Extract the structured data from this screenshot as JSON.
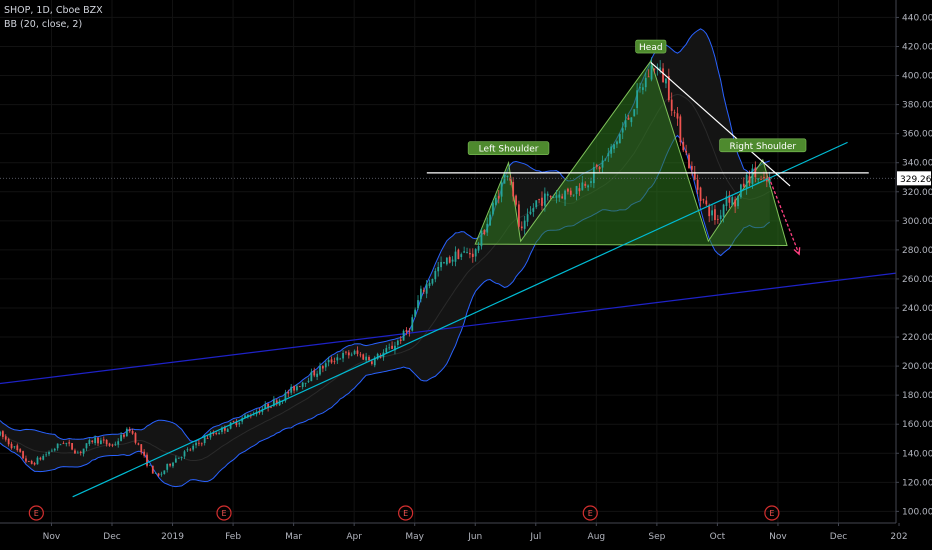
{
  "legend": {
    "symbol_line": "SHOP, 1D, Cboe BZX",
    "indicator_line": "BB (20, close, 2)"
  },
  "colors": {
    "background": "#000000",
    "up_candle": "#26a69a",
    "down_candle": "#ef5350",
    "bb_band": "#2962ff",
    "bb_fill": "#141414",
    "trend_cyan": "#00bcd4",
    "trend_blue": "#1e22c8",
    "pattern_fill": "#2f7a1f",
    "pattern_stroke": "#7fc25a",
    "price_badge": "#ffffff",
    "projection": "#ff4081"
  },
  "chart_data": {
    "type": "candlestick",
    "ylim": [
      92,
      452
    ],
    "x_range_months": [
      -0.85,
      13.95
    ],
    "y_ticks": [
      "100.00",
      "120.00",
      "140.00",
      "160.00",
      "180.00",
      "200.00",
      "220.00",
      "240.00",
      "260.00",
      "280.00",
      "300.00",
      "320.00",
      "340.00",
      "360.00",
      "380.00",
      "400.00",
      "420.00",
      "440.00"
    ],
    "x_ticks": [
      {
        "label": "Nov",
        "m": 0.0
      },
      {
        "label": "Dec",
        "m": 1.0
      },
      {
        "label": "2019",
        "m": 2.0
      },
      {
        "label": "Feb",
        "m": 3.0
      },
      {
        "label": "Mar",
        "m": 4.0
      },
      {
        "label": "Apr",
        "m": 5.0
      },
      {
        "label": "May",
        "m": 6.0
      },
      {
        "label": "Jun",
        "m": 7.0
      },
      {
        "label": "Jul",
        "m": 8.0
      },
      {
        "label": "Aug",
        "m": 9.0
      },
      {
        "label": "Sep",
        "m": 10.0
      },
      {
        "label": "Oct",
        "m": 11.0
      },
      {
        "label": "Nov",
        "m": 12.0
      },
      {
        "label": "Dec",
        "m": 13.0
      },
      {
        "label": "202",
        "m": 14.0
      }
    ],
    "last_price_label": "329.26",
    "last_price": 329.26,
    "earnings_markers": [
      {
        "label": "E",
        "m": -0.25
      },
      {
        "label": "E",
        "m": 2.85
      },
      {
        "label": "E",
        "m": 5.85
      },
      {
        "label": "E",
        "m": 8.9
      },
      {
        "label": "E",
        "m": 11.9
      }
    ],
    "price_path": [
      {
        "m": -0.85,
        "p": 153
      },
      {
        "m": -0.6,
        "p": 143
      },
      {
        "m": -0.35,
        "p": 132
      },
      {
        "m": -0.1,
        "p": 139
      },
      {
        "m": 0.2,
        "p": 148
      },
      {
        "m": 0.45,
        "p": 140
      },
      {
        "m": 0.7,
        "p": 150
      },
      {
        "m": 1.0,
        "p": 145
      },
      {
        "m": 1.3,
        "p": 157
      },
      {
        "m": 1.55,
        "p": 135
      },
      {
        "m": 1.75,
        "p": 123
      },
      {
        "m": 2.0,
        "p": 135
      },
      {
        "m": 2.3,
        "p": 143
      },
      {
        "m": 2.6,
        "p": 152
      },
      {
        "m": 2.9,
        "p": 158
      },
      {
        "m": 3.2,
        "p": 165
      },
      {
        "m": 3.5,
        "p": 171
      },
      {
        "m": 3.8,
        "p": 178
      },
      {
        "m": 4.1,
        "p": 188
      },
      {
        "m": 4.4,
        "p": 197
      },
      {
        "m": 4.7,
        "p": 206
      },
      {
        "m": 5.0,
        "p": 209
      },
      {
        "m": 5.3,
        "p": 204
      },
      {
        "m": 5.6,
        "p": 212
      },
      {
        "m": 5.9,
        "p": 225
      },
      {
        "m": 6.1,
        "p": 250
      },
      {
        "m": 6.4,
        "p": 268
      },
      {
        "m": 6.7,
        "p": 277
      },
      {
        "m": 7.0,
        "p": 278
      },
      {
        "m": 7.25,
        "p": 305
      },
      {
        "m": 7.55,
        "p": 337
      },
      {
        "m": 7.75,
        "p": 290
      },
      {
        "m": 8.0,
        "p": 313
      },
      {
        "m": 8.3,
        "p": 318
      },
      {
        "m": 8.6,
        "p": 320
      },
      {
        "m": 8.9,
        "p": 330
      },
      {
        "m": 9.2,
        "p": 345
      },
      {
        "m": 9.5,
        "p": 368
      },
      {
        "m": 9.75,
        "p": 392
      },
      {
        "m": 9.95,
        "p": 408
      },
      {
        "m": 10.15,
        "p": 396
      },
      {
        "m": 10.35,
        "p": 364
      },
      {
        "m": 10.6,
        "p": 330
      },
      {
        "m": 10.8,
        "p": 310
      },
      {
        "m": 11.0,
        "p": 300
      },
      {
        "m": 11.15,
        "p": 318
      },
      {
        "m": 11.3,
        "p": 312
      },
      {
        "m": 11.45,
        "p": 327
      },
      {
        "m": 11.6,
        "p": 333
      },
      {
        "m": 11.75,
        "p": 325
      },
      {
        "m": 11.9,
        "p": 329
      }
    ],
    "bollinger_window": 20,
    "bollinger_mult": 2,
    "trendlines": [
      {
        "name": "rising-cyan",
        "color": "cyan",
        "from": {
          "m": 0.35,
          "p": 110
        },
        "to": {
          "m": 13.15,
          "p": 354
        }
      },
      {
        "name": "long-blue",
        "color": "blue",
        "from": {
          "m": -0.85,
          "p": 188
        },
        "to": {
          "m": 13.95,
          "p": 264
        }
      },
      {
        "name": "neckline-white",
        "color": "white",
        "from": {
          "m": 6.2,
          "p": 333
        },
        "to": {
          "m": 13.5,
          "p": 333
        }
      },
      {
        "name": "descending-white",
        "color": "white",
        "from": {
          "m": 9.9,
          "p": 409
        },
        "to": {
          "m": 12.2,
          "p": 324
        }
      }
    ],
    "pattern": {
      "labels": [
        "Left Shoulder",
        "Head",
        "Right Shoulder"
      ],
      "points": [
        {
          "m": 7.0,
          "p": 284
        },
        {
          "m": 7.55,
          "p": 340
        },
        {
          "m": 7.75,
          "p": 286
        },
        {
          "m": 9.9,
          "p": 410
        },
        {
          "m": 10.85,
          "p": 286
        },
        {
          "m": 11.75,
          "p": 342
        },
        {
          "m": 12.15,
          "p": 283
        }
      ]
    },
    "projection_arrow": {
      "from": {
        "m": 11.85,
        "p": 330
      },
      "to": {
        "m": 12.35,
        "p": 277
      }
    }
  }
}
